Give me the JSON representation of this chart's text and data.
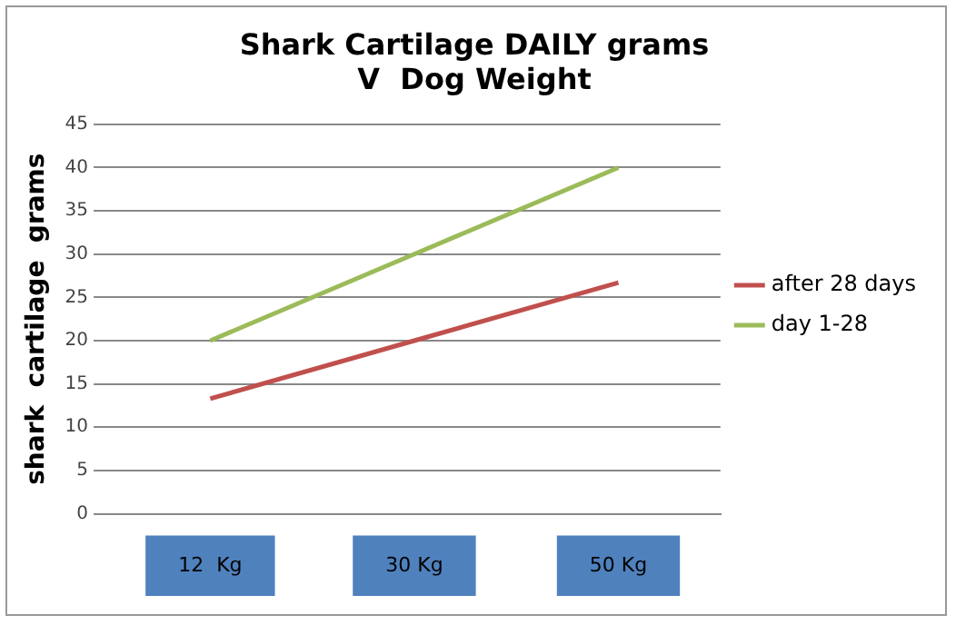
{
  "chart_data": {
    "type": "line",
    "title": "Shark Cartilage DAILY grams\nV  Dog Weight",
    "ylabel": "shark  cartilage  grams",
    "categories": [
      "12  Kg",
      "30 Kg",
      "50 Kg"
    ],
    "series": [
      {
        "name": "after 28 days",
        "color": "#c0504d",
        "values": [
          13.3,
          20,
          26.7
        ]
      },
      {
        "name": "day 1-28",
        "color": "#9bbb59",
        "values": [
          20,
          30,
          40
        ]
      }
    ],
    "ylim": [
      0,
      45
    ],
    "yticks": [
      0,
      5,
      10,
      15,
      20,
      25,
      30,
      35,
      40,
      45
    ],
    "grid": "y",
    "legend": "right",
    "marker": "none",
    "line_style": "solid"
  }
}
